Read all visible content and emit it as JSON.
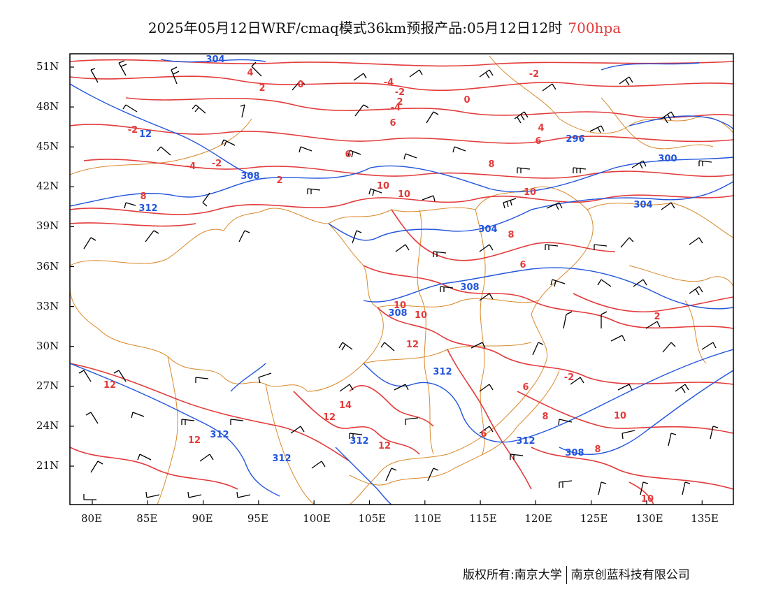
{
  "title": {
    "text": "2025年05月12日WRF/cmaq模式36km预报产品:05月12日12时",
    "level": "700hpa",
    "level_color": "#e33b3b"
  },
  "axes": {
    "lat_labels": [
      "51N",
      "48N",
      "45N",
      "42N",
      "39N",
      "36N",
      "33N",
      "30N",
      "27N",
      "24N",
      "21N"
    ],
    "lon_labels": [
      "80E",
      "85E",
      "90E",
      "95E",
      "100E",
      "105E",
      "110E",
      "115E",
      "120E",
      "125E",
      "130E",
      "135E"
    ]
  },
  "legend_colors": {
    "temperature_contours": "#e33b3b",
    "geopotential_contours": "#2255dd",
    "boundaries": "#d9892a",
    "wind_barbs": "#000000"
  },
  "temperature_labels": [
    "4",
    "2",
    "0",
    "-4",
    "-2",
    "-4",
    "6",
    "2",
    "0",
    "-2",
    "6",
    "4",
    "-2",
    "-2",
    "2",
    "-4",
    "6",
    "8",
    "10",
    "10",
    "10",
    "8",
    "6",
    "2",
    "12",
    "14",
    "12",
    "12",
    "10",
    "10",
    "12",
    "12",
    "6",
    "8",
    "6",
    "-2",
    "10",
    "8",
    "10",
    "8"
  ],
  "height_labels": [
    "304",
    "12",
    "308",
    "312",
    "304",
    "304",
    "296",
    "300",
    "308",
    "308",
    "312",
    "312",
    "312",
    "312",
    "312",
    "308"
  ],
  "footer": {
    "left": "版权所有:南京大学",
    "right": "南京创蓝科技有限公司"
  }
}
